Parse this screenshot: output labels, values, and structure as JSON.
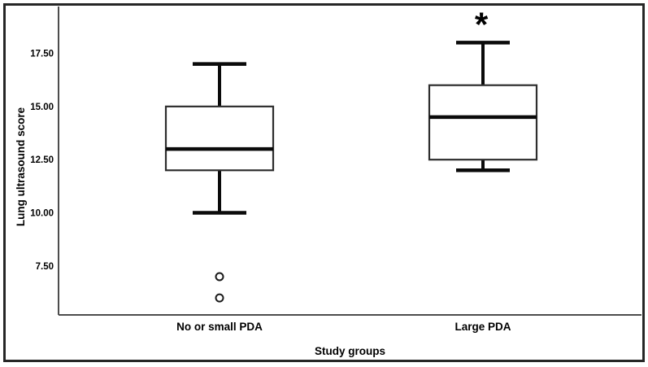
{
  "chart_data": {
    "type": "boxplot",
    "title": "",
    "xlabel": "Study groups",
    "ylabel": "Lung ultrasound score",
    "ylim": [
      5.2,
      19.7
    ],
    "grid": false,
    "legend": false,
    "y_ticks": [
      {
        "value": 17.5,
        "label": "17.50"
      },
      {
        "value": 15.0,
        "label": "15.00"
      },
      {
        "value": 12.5,
        "label": "12.50"
      },
      {
        "value": 10.0,
        "label": "10.00"
      },
      {
        "value": 7.5,
        "label": "7.50"
      }
    ],
    "categories": [
      "No or small PDA",
      "Large PDA"
    ],
    "series": [
      {
        "category": "No or small PDA",
        "whisker_low": 10,
        "q1": 12,
        "median": 13,
        "q3": 15,
        "whisker_high": 17,
        "outliers": [
          7,
          6
        ],
        "annotation": ""
      },
      {
        "category": "Large PDA",
        "whisker_low": 12,
        "q1": 12.5,
        "median": 14.5,
        "q3": 16,
        "whisker_high": 18,
        "outliers": [],
        "annotation": "*"
      }
    ],
    "colors": {
      "background": "#ffffff",
      "frame": "#262626",
      "axis": "#4d4d4d",
      "box_border": "#2e2e2e",
      "box_fill": "#ffffff",
      "median": "#0a0a0a",
      "whisker": "#0a0a0a",
      "outlier_stroke": "#1a1a1a",
      "text": "#000000"
    }
  }
}
